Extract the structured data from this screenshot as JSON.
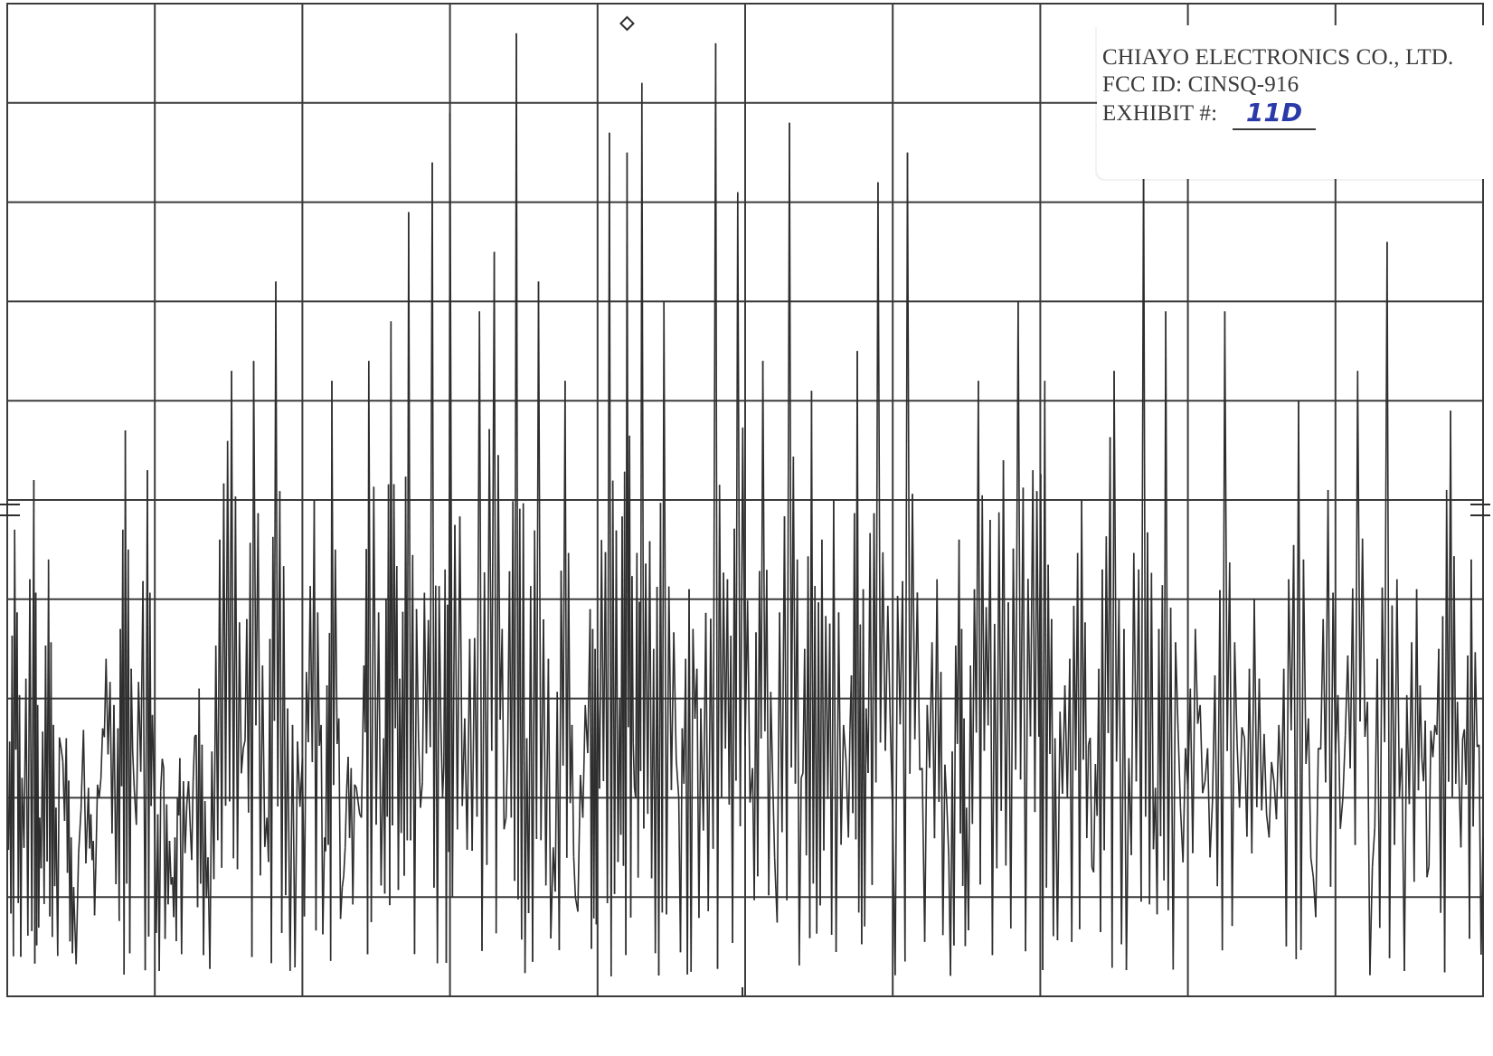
{
  "label": {
    "company": "CHIAYO ELECTRONICS CO., LTD.",
    "fcc_id": "FCC ID: CINSQ-916",
    "exhibit_prefix": "EXHIBIT #:",
    "exhibit_value": "11D"
  },
  "colors": {
    "trace": "#2e2e2e",
    "grid": "#3b3b3b",
    "background": "#ffffff",
    "exhibit_ink": "#2a3aa8"
  },
  "chart_data": {
    "type": "line",
    "title": "",
    "xlabel": "",
    "ylabel": "",
    "grid": true,
    "grid_divisions": {
      "x": 10,
      "y": 10
    },
    "xlim": [
      0,
      10
    ],
    "ylim": [
      0,
      10
    ],
    "marker": {
      "x": 4.2,
      "y": 9.8
    },
    "reference_level_marker_y": 4.9,
    "series": [
      {
        "values_description_free": true,
        "x": [
          0.0,
          0.05,
          0.1,
          0.18,
          0.22,
          0.28,
          0.33,
          0.4,
          0.45,
          0.55,
          0.6,
          0.67,
          0.75,
          0.8,
          0.86,
          0.95,
          1.0,
          1.06,
          1.12,
          1.17,
          1.24,
          1.3,
          1.36,
          1.44,
          1.52,
          1.6,
          1.67,
          1.76,
          1.82,
          1.9,
          2.0,
          2.08,
          2.15,
          2.2,
          2.27,
          2.33,
          2.4,
          2.45,
          2.55,
          2.6,
          2.66,
          2.72,
          2.8,
          2.88,
          2.95,
          3.0,
          3.1,
          3.2,
          3.3,
          3.38,
          3.45,
          3.52,
          3.6,
          3.7,
          3.78,
          3.85,
          3.95,
          4.0,
          4.08,
          4.15,
          4.2,
          4.25,
          4.3,
          4.38,
          4.45,
          4.55,
          4.62,
          4.7,
          4.8,
          4.88,
          4.95,
          5.05,
          5.12,
          5.2,
          5.3,
          5.38,
          5.45,
          5.52,
          5.6,
          5.7,
          5.76,
          5.82,
          5.9,
          6.0,
          6.1,
          6.2,
          6.3,
          6.38,
          6.45,
          6.5,
          6.58,
          6.66,
          6.75,
          6.85,
          6.95,
          7.03,
          7.1,
          7.2,
          7.28,
          7.35,
          7.42,
          7.5,
          7.6,
          7.7,
          7.78,
          7.85,
          7.95,
          8.05,
          8.15,
          8.25,
          8.35,
          8.45,
          8.55,
          8.65,
          8.75,
          8.85,
          8.95,
          9.05,
          9.15,
          9.25,
          9.35,
          9.45,
          9.55,
          9.62,
          9.7,
          9.78,
          9.85,
          9.92,
          10.0
        ],
        "y": [
          1.5,
          4.7,
          2.2,
          5.2,
          1.8,
          4.4,
          1.9,
          2.6,
          1.1,
          2.1,
          1.3,
          3.4,
          2.7,
          5.7,
          2.1,
          5.3,
          1.6,
          2.3,
          1.2,
          2.4,
          1.7,
          3.1,
          1.4,
          4.6,
          6.3,
          2.5,
          6.4,
          1.8,
          7.2,
          2.9,
          2.4,
          5.0,
          1.6,
          6.2,
          1.1,
          2.3,
          1.8,
          6.4,
          2.6,
          6.8,
          3.2,
          7.9,
          1.9,
          8.4,
          2.0,
          8.9,
          2.8,
          6.9,
          7.5,
          1.8,
          9.7,
          2.6,
          7.2,
          1.5,
          6.2,
          1.0,
          3.9,
          3.3,
          8.7,
          3.0,
          8.5,
          2.1,
          9.2,
          3.5,
          7.0,
          2.0,
          4.1,
          2.9,
          9.6,
          4.2,
          8.1,
          2.3,
          6.4,
          1.4,
          8.8,
          2.2,
          6.1,
          4.6,
          5.0,
          1.6,
          6.5,
          2.9,
          8.2,
          1.8,
          8.5,
          2.3,
          4.2,
          1.4,
          4.6,
          1.9,
          6.2,
          4.8,
          5.4,
          7.0,
          5.3,
          6.2,
          2.6,
          3.4,
          5.0,
          1.3,
          4.3,
          6.3,
          2.4,
          8.6,
          2.1,
          6.9,
          1.9,
          3.7,
          1.4,
          6.9,
          1.9,
          4.0,
          1.6,
          3.3,
          6.0,
          1.2,
          5.1,
          2.0,
          6.3,
          1.3,
          7.6,
          2.5,
          4.1,
          1.2,
          3.5,
          5.9,
          1.5,
          4.4,
          1.6
        ]
      }
    ]
  }
}
